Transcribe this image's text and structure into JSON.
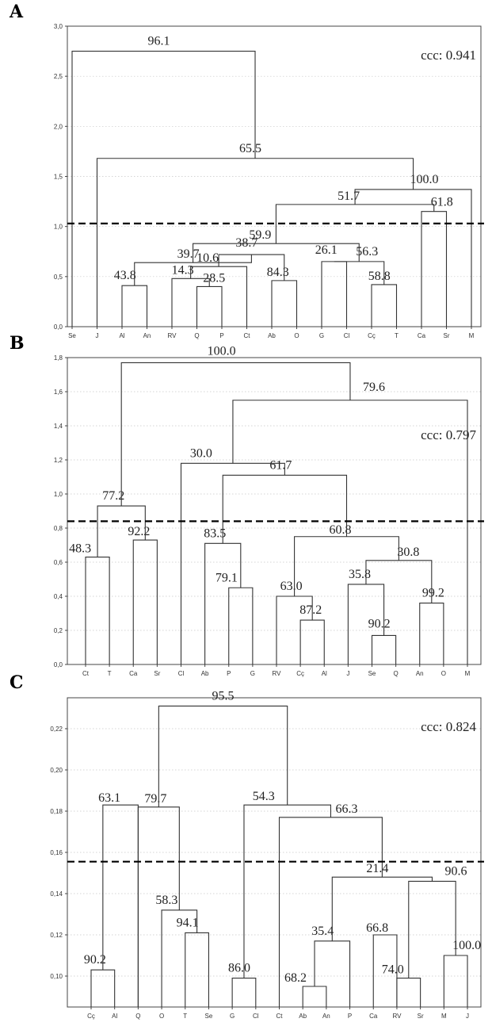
{
  "chart_data": [
    {
      "type": "dendrogram",
      "panel": "A",
      "ylim": [
        0,
        3.0
      ],
      "yticks": [
        "0,0",
        "0,5",
        "1,0",
        "1,5",
        "2,0",
        "2,5",
        "3,0"
      ],
      "leaves": [
        "Se",
        "J",
        "Al",
        "An",
        "RV",
        "Q",
        "P",
        "Ct",
        "Ab",
        "O",
        "G",
        "Cl",
        "Cç",
        "T",
        "Ca",
        "Sr",
        "M"
      ],
      "ccc": "ccc: 0.941",
      "cut_height": 1.03,
      "merges": [
        {
          "a": "Al",
          "b": "An",
          "h": 0.41,
          "label": "43.8"
        },
        {
          "a": "Q",
          "b": "P",
          "h": 0.4,
          "label": "28.5"
        },
        {
          "a": "RV",
          "b": "n1",
          "h": 0.48,
          "label": "14.3"
        },
        {
          "a": "n2",
          "b": "Ct",
          "h": 0.6,
          "label": "10.6"
        },
        {
          "a": "Ab",
          "b": "O",
          "h": 0.46,
          "label": "84.3"
        },
        {
          "a": "n3",
          "b": "n4",
          "h": 0.72,
          "label": "38.7"
        },
        {
          "a": "n0",
          "b": "n5",
          "h": 0.64,
          "label": "39.7"
        },
        {
          "a": "G",
          "b": "Cl",
          "h": 0.65,
          "label": "26.1"
        },
        {
          "a": "Cç",
          "b": "T",
          "h": 0.42,
          "label": "58.8"
        },
        {
          "a": "n7",
          "b": "n8",
          "h": 0.65,
          "label": "56.3"
        },
        {
          "a": "n6",
          "b": "n9",
          "h": 0.83,
          "label": "59.9"
        },
        {
          "a": "Ca",
          "b": "Sr",
          "h": 1.15,
          "label": "61.8"
        },
        {
          "a": "n10",
          "b": "n11",
          "h": 1.22,
          "label": "51.7"
        },
        {
          "a": "n12",
          "b": "M",
          "h": 1.37,
          "label": "100.0"
        },
        {
          "a": "J",
          "b": "n13",
          "h": 1.68,
          "label": "65.5"
        },
        {
          "a": "Se",
          "b": "n14",
          "h": 2.75,
          "label": "96.1"
        }
      ]
    },
    {
      "type": "dendrogram",
      "panel": "B",
      "ylim": [
        0,
        1.8
      ],
      "yticks": [
        "0,0",
        "0,2",
        "0,4",
        "0,6",
        "0,8",
        "1,0",
        "1,2",
        "1,4",
        "1,6",
        "1,8"
      ],
      "leaves": [
        "Ct",
        "T",
        "Ca",
        "Sr",
        "Cl",
        "Ab",
        "P",
        "G",
        "RV",
        "Cç",
        "Al",
        "J",
        "Se",
        "Q",
        "An",
        "O",
        "M"
      ],
      "ccc": "ccc: 0.797",
      "cut_height": 0.84,
      "merges": [
        {
          "a": "Ct",
          "b": "T",
          "h": 0.63,
          "label": "48.3"
        },
        {
          "a": "Ca",
          "b": "Sr",
          "h": 0.73,
          "label": "92.2"
        },
        {
          "a": "n0",
          "b": "n1",
          "h": 0.93,
          "label": "77.2"
        },
        {
          "a": "P",
          "b": "G",
          "h": 0.45,
          "label": "79.1"
        },
        {
          "a": "Ab",
          "b": "n3",
          "h": 0.71,
          "label": "83.5"
        },
        {
          "a": "Cç",
          "b": "Al",
          "h": 0.26,
          "label": "87.2"
        },
        {
          "a": "RV",
          "b": "n5",
          "h": 0.4,
          "label": "63.0"
        },
        {
          "a": "Se",
          "b": "Q",
          "h": 0.17,
          "label": "90.2"
        },
        {
          "a": "J",
          "b": "n7",
          "h": 0.47,
          "label": "35.8"
        },
        {
          "a": "An",
          "b": "O",
          "h": 0.36,
          "label": "99.2"
        },
        {
          "a": "n8",
          "b": "n9",
          "h": 0.61,
          "label": "30.8"
        },
        {
          "a": "n6",
          "b": "n10",
          "h": 0.75,
          "label": "60.8"
        },
        {
          "a": "n4",
          "b": "n11",
          "h": 1.11,
          "label": "61.7"
        },
        {
          "a": "Cl",
          "b": "n12",
          "h": 1.18,
          "label": "30.0"
        },
        {
          "a": "n13",
          "b": "M",
          "h": 1.55,
          "label": "79.6"
        },
        {
          "a": "n2",
          "b": "n14",
          "h": 1.77,
          "label": "100.0"
        }
      ]
    },
    {
      "type": "dendrogram",
      "panel": "C",
      "ylim": [
        0.085,
        0.235
      ],
      "yticks": [
        "0,10",
        "0,12",
        "0,14",
        "0,16",
        "0,18",
        "0,20",
        "0,22"
      ],
      "ytick_values": [
        0.1,
        0.12,
        0.14,
        0.16,
        0.18,
        0.2,
        0.22
      ],
      "leaves": [
        "Cç",
        "Al",
        "Q",
        "O",
        "T",
        "Se",
        "G",
        "Cl",
        "Ct",
        "Ab",
        "An",
        "P",
        "Ca",
        "RV",
        "Sr",
        "M",
        "J"
      ],
      "ccc": "ccc: 0.824",
      "cut_height": 0.1555,
      "merges": [
        {
          "a": "Cç",
          "b": "Al",
          "h": 0.103,
          "label": "90.2"
        },
        {
          "a": "n0",
          "b": "Q",
          "h": 0.183,
          "label": "63.1"
        },
        {
          "a": "T",
          "b": "Se",
          "h": 0.121,
          "label": "94.1"
        },
        {
          "a": "O",
          "b": "n2",
          "h": 0.132,
          "label": "58.3"
        },
        {
          "a": "Q",
          "b": "n3",
          "h": 0.182,
          "label": "79.7",
          "attach": "n1"
        },
        {
          "a": "G",
          "b": "Cl",
          "h": 0.099,
          "label": "86.0"
        },
        {
          "a": "Ab",
          "b": "An",
          "h": 0.095,
          "label": "68.2"
        },
        {
          "a": "n6",
          "b": "P",
          "h": 0.117,
          "label": "35.4"
        },
        {
          "a": "Ca",
          "b": "RV",
          "h": 0.12,
          "label": "66.8"
        },
        {
          "a": "RV",
          "b": "Sr",
          "h": 0.099,
          "label": "74.0",
          "attach": "n8"
        },
        {
          "a": "M",
          "b": "J",
          "h": 0.11,
          "label": "100.0"
        },
        {
          "a": "n8",
          "b": "n10",
          "h": 0.146,
          "label": "90.6"
        },
        {
          "a": "n7",
          "b": "n11",
          "h": 0.148,
          "label": "21.4"
        },
        {
          "a": "Ct",
          "b": "n12",
          "h": 0.177,
          "label": "66.3"
        },
        {
          "a": "n5",
          "b": "n13",
          "h": 0.183,
          "label": "54.3"
        },
        {
          "a": "n1",
          "b": "n14",
          "h": 0.231,
          "label": "95.5"
        }
      ]
    }
  ]
}
